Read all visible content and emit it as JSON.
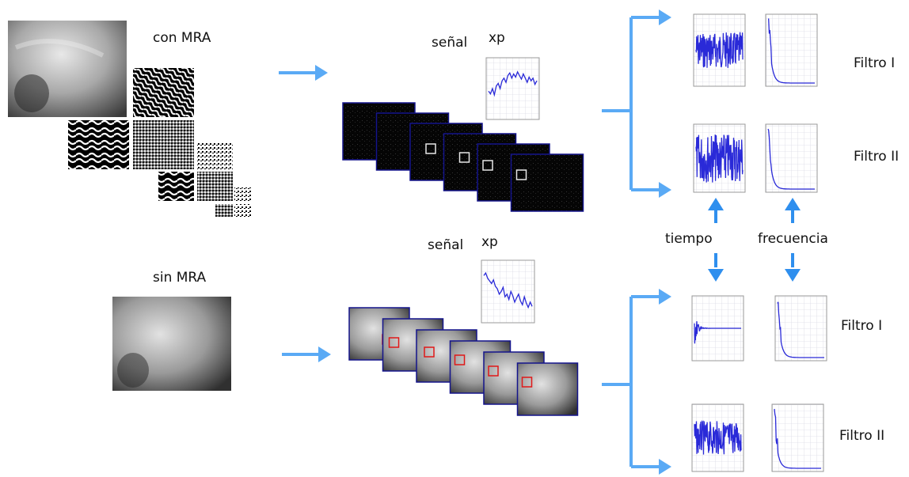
{
  "labels": {
    "con_mra": "con MRA",
    "sin_mra": "sin MRA",
    "senal": "señal",
    "xp": "xp",
    "tiempo": "tiempo",
    "frecuencia": "frecuencia",
    "filtro_1": "Filtro I",
    "filtro_2": "Filtro II"
  },
  "colors": {
    "arrow": "#5aaaf5",
    "arrow_dark": "#2f8fee",
    "signal": "#2a2ad8",
    "frame_border": "#14148c",
    "roi_top": "#e8e8e8",
    "roi_bottom": "#e01818"
  },
  "top_branch": {
    "series": [
      0.55,
      0.6,
      0.5,
      0.62,
      0.45,
      0.4,
      0.5,
      0.35,
      0.3,
      0.38,
      0.25,
      0.2,
      0.3,
      0.22,
      0.28,
      0.18,
      0.25,
      0.32,
      0.22,
      0.3,
      0.38,
      0.28,
      0.35,
      0.3,
      0.42,
      0.35
    ]
  },
  "bottom_branch": {
    "series": [
      0.2,
      0.15,
      0.25,
      0.3,
      0.35,
      0.28,
      0.4,
      0.45,
      0.55,
      0.5,
      0.42,
      0.6,
      0.55,
      0.65,
      0.5,
      0.58,
      0.7,
      0.62,
      0.55,
      0.68,
      0.75,
      0.6,
      0.72,
      0.8,
      0.7,
      0.78
    ]
  }
}
